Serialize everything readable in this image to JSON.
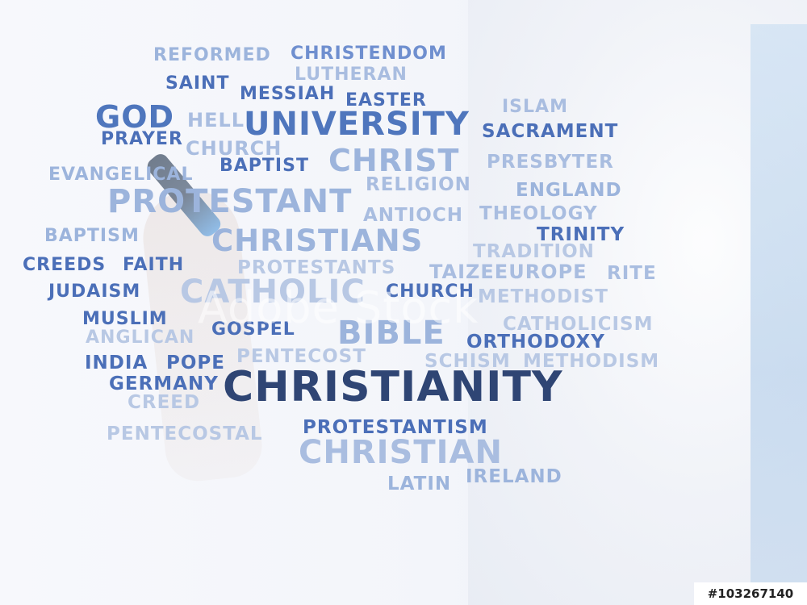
{
  "watermark": "Adobe Stock",
  "stock_id": "#103267140",
  "words": [
    {
      "text": "REFORMED",
      "color": "#9cb4dc"
    },
    {
      "text": "CHRISTENDOM",
      "color": "#6f8fcf"
    },
    {
      "text": "LUTHERAN",
      "color": "#a9bde0"
    },
    {
      "text": "SAINT",
      "color": "#4b6fb8"
    },
    {
      "text": "MESSIAH",
      "color": "#4b6fb8"
    },
    {
      "text": "EASTER",
      "color": "#4b6fb8"
    },
    {
      "text": "ISLAM",
      "color": "#a9bde0"
    },
    {
      "text": "GOD",
      "color": "#4f76bd"
    },
    {
      "text": "HELL",
      "color": "#a9bde0"
    },
    {
      "text": "UNIVERSITY",
      "color": "#4f76bd"
    },
    {
      "text": "SACRAMENT",
      "color": "#4b6fb8"
    },
    {
      "text": "PRAYER",
      "color": "#4b6fb8"
    },
    {
      "text": "CHURCH",
      "color": "#a9bde0"
    },
    {
      "text": "BAPTIST",
      "color": "#4b6fb8"
    },
    {
      "text": "CHRIST",
      "color": "#9cb4dc"
    },
    {
      "text": "PRESBYTER",
      "color": "#a9bde0"
    },
    {
      "text": "EVANGELICAL",
      "color": "#9cb4dc"
    },
    {
      "text": "RELIGION",
      "color": "#a9bde0"
    },
    {
      "text": "ENGLAND",
      "color": "#9cb4dc"
    },
    {
      "text": "PROTESTANT",
      "color": "#9cb4dc"
    },
    {
      "text": "ANTIOCH",
      "color": "#a9bde0"
    },
    {
      "text": "THEOLOGY",
      "color": "#a9bde0"
    },
    {
      "text": "BAPTISM",
      "color": "#9cb4dc"
    },
    {
      "text": "CHRISTIANS",
      "color": "#9cb4dc"
    },
    {
      "text": "TRINITY",
      "color": "#4b6fb8"
    },
    {
      "text": "TRADITION",
      "color": "#b8c8e4"
    },
    {
      "text": "CREEDS",
      "color": "#4b6fb8"
    },
    {
      "text": "FAITH",
      "color": "#4b6fb8"
    },
    {
      "text": "PROTESTANTS",
      "color": "#b8c8e4"
    },
    {
      "text": "TAIZEEUROPE",
      "color": "#a9bde0"
    },
    {
      "text": "RITE",
      "color": "#a9bde0"
    },
    {
      "text": "JUDAISM",
      "color": "#4b6fb8"
    },
    {
      "text": "CATHOLIC",
      "color": "#b8c8e4"
    },
    {
      "text": "CHURCH",
      "color": "#4b6fb8"
    },
    {
      "text": "METHODIST",
      "color": "#b8c8e4"
    },
    {
      "text": "MUSLIM",
      "color": "#4b6fb8"
    },
    {
      "text": "ANGLICAN",
      "color": "#b8c8e4"
    },
    {
      "text": "GOSPEL",
      "color": "#4b6fb8"
    },
    {
      "text": "BIBLE",
      "color": "#9cb4dc"
    },
    {
      "text": "ORTHODOXY",
      "color": "#4b6fb8"
    },
    {
      "text": "CATHOLICISM",
      "color": "#b8c8e4"
    },
    {
      "text": "PENTECOST",
      "color": "#b8c8e4"
    },
    {
      "text": "INDIA",
      "color": "#4b6fb8"
    },
    {
      "text": "POPE",
      "color": "#4b6fb8"
    },
    {
      "text": "SCHISM",
      "color": "#b8c8e4"
    },
    {
      "text": "METHODISM",
      "color": "#b8c8e4"
    },
    {
      "text": "GERMANY",
      "color": "#4b6fb8"
    },
    {
      "text": "CHRISTIANITY",
      "color": "#2f4574"
    },
    {
      "text": "CREED",
      "color": "#b8c8e4"
    },
    {
      "text": "PENTECOSTAL",
      "color": "#b8c8e4"
    },
    {
      "text": "PROTESTANTISM",
      "color": "#4b6fb8"
    },
    {
      "text": "CHRISTIAN",
      "color": "#a9bde0"
    },
    {
      "text": "LATIN",
      "color": "#9cb4dc"
    },
    {
      "text": "IRELAND",
      "color": "#9cb4dc"
    }
  ]
}
